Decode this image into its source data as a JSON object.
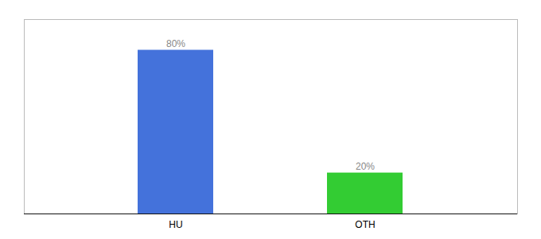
{
  "chart_data": {
    "type": "bar",
    "categories": [
      "HU",
      "OTH"
    ],
    "values": [
      80,
      20
    ],
    "colors": [
      "#4472db",
      "#33cc33"
    ],
    "ylim": [
      0,
      95
    ],
    "data_labels": true,
    "value_labels": [
      "80%",
      "20%"
    ],
    "tick_labels": "x"
  }
}
